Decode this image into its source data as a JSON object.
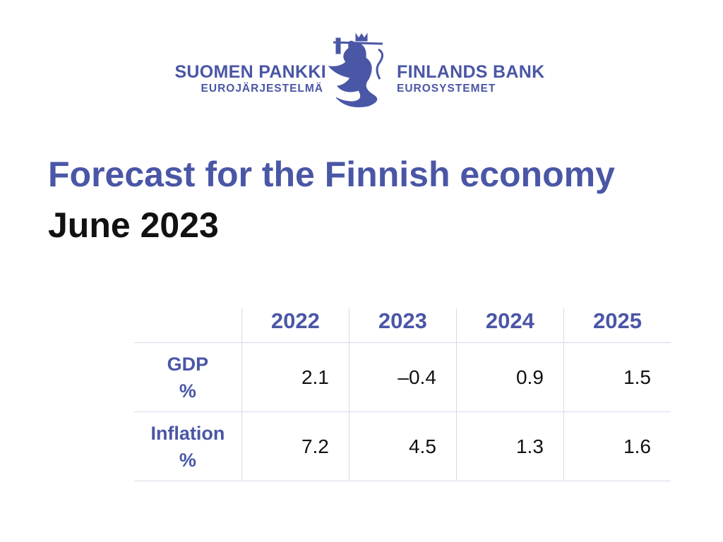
{
  "colors": {
    "brand": "#4a56a6",
    "text": "#111111",
    "grid": "#d8d9ea"
  },
  "logo": {
    "left_name": "SUOMEN PANKKI",
    "left_sub": "EUROJÄRJESTELMÄ",
    "right_name": "FINLANDS BANK",
    "right_sub": "EUROSYSTEMET",
    "emblem": "lion-emblem"
  },
  "header": {
    "title": "Forecast for the Finnish economy",
    "subtitle": "June 2023"
  },
  "chart_data": {
    "type": "table",
    "title": "Forecast for the Finnish economy",
    "subtitle": "June 2023",
    "columns": [
      "2022",
      "2023",
      "2024",
      "2025"
    ],
    "rows": [
      {
        "label": "GDP",
        "unit": "%",
        "values": [
          "2.1",
          "–0.4",
          "0.9",
          "1.5"
        ]
      },
      {
        "label": "Inflation",
        "unit": "%",
        "values": [
          "7.2",
          "4.5",
          "1.3",
          "1.6"
        ]
      }
    ]
  }
}
